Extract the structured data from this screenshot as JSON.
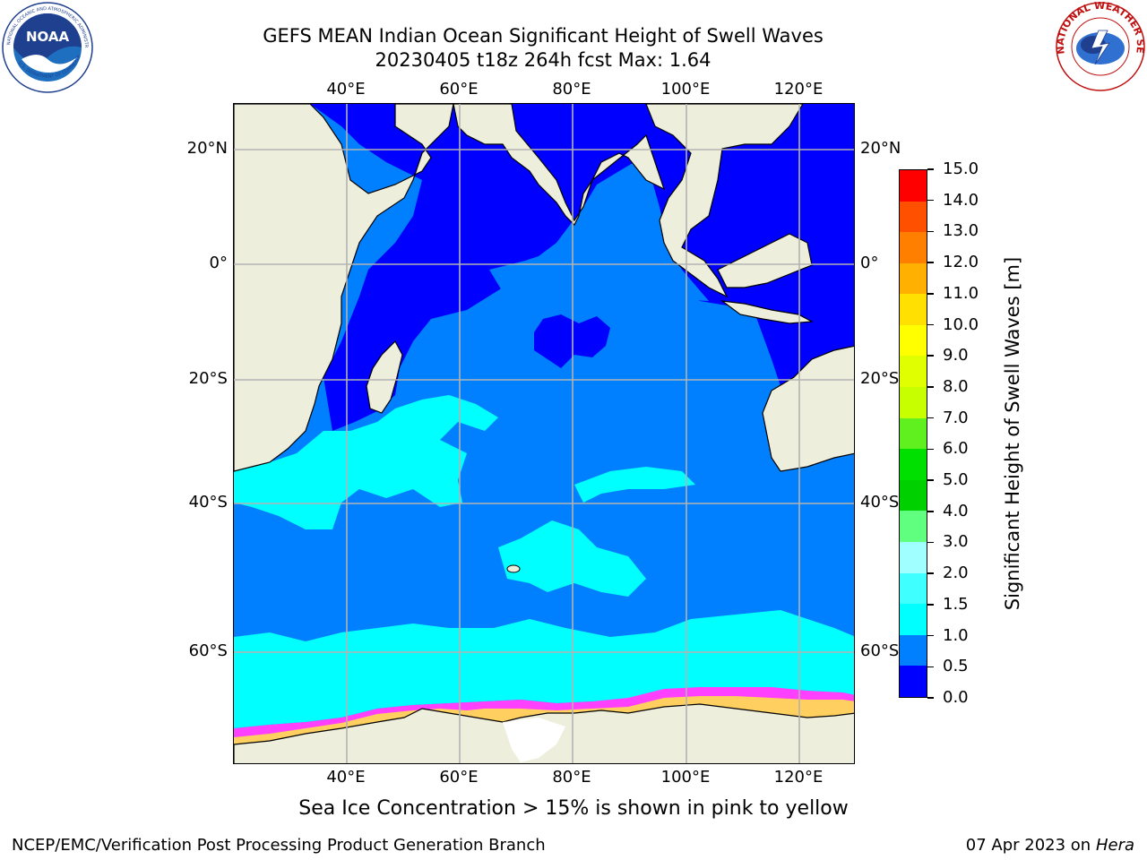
{
  "header": {
    "title_line1": "GEFS MEAN Indian Ocean Significant Height of Swell Waves",
    "title_line2": "20230405 t18z 264h fcst   Max: 1.64"
  },
  "logos": {
    "noaa": {
      "icon": "noaa-logo-icon",
      "text": "NOAA",
      "ring_text": "NATIONAL OCEANIC AND ATMOSPHERIC ADMINISTRATION",
      "ring_text_bottom": "U.S. DEPARTMENT OF COMMERCE"
    },
    "nws": {
      "icon": "nws-logo-icon",
      "ring_text": "NATIONAL WEATHER SERVICE"
    }
  },
  "map": {
    "lon_labels": [
      "40°E",
      "60°E",
      "80°E",
      "100°E",
      "120°E"
    ],
    "lat_labels_left": [
      "20°N",
      "0°",
      "20°S",
      "40°S",
      "60°S"
    ],
    "lat_labels_right": [
      "20°N",
      "0°",
      "20°S",
      "40°S",
      "60°S"
    ],
    "colors": {
      "land": "#eeeedd",
      "ice_free_land": "#ffffff",
      "sea_0_0_5": "#0000ff",
      "sea_0_5_1_0": "#0080ff",
      "sea_1_0_1_5": "#00ffff",
      "sea_ice_pink": "#ff40ff",
      "sea_ice_yellow": "#ffd060"
    }
  },
  "colorbar": {
    "title": "Significant Height of Swell Waves [m]",
    "tick_labels": [
      "0.0",
      "0.5",
      "1.0",
      "1.5",
      "2.0",
      "3.0",
      "4.0",
      "5.0",
      "6.0",
      "7.0",
      "8.0",
      "9.0",
      "10.0",
      "11.0",
      "12.0",
      "13.0",
      "14.0",
      "15.0"
    ],
    "colors": [
      "#0000ff",
      "#0080ff",
      "#00ffff",
      "#40ffff",
      "#a0ffff",
      "#60ff80",
      "#00d000",
      "#00e000",
      "#60f020",
      "#c8ff00",
      "#e0ff00",
      "#ffff00",
      "#ffe000",
      "#ffb000",
      "#ff8000",
      "#ff5000",
      "#ff0000"
    ]
  },
  "footer": {
    "note": "Sea Ice Concentration > 15% is shown in pink to yellow",
    "credit_left": "NCEP/EMC/Verification Post Processing Product Generation Branch",
    "date": "07 Apr 2023 on",
    "host": "Hera"
  }
}
